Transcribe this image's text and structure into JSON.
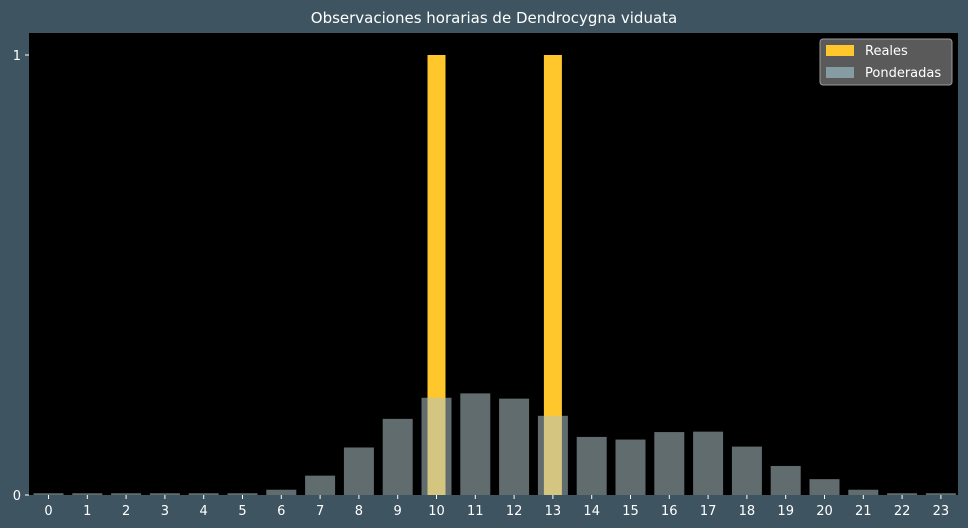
{
  "chart_data": {
    "type": "bar",
    "title": "Observaciones horarias de Dendrocygna viduata",
    "xlabel": "",
    "ylabel": "",
    "categories": [
      "0",
      "1",
      "2",
      "3",
      "4",
      "5",
      "6",
      "7",
      "8",
      "9",
      "10",
      "11",
      "12",
      "13",
      "14",
      "15",
      "16",
      "17",
      "18",
      "19",
      "20",
      "21",
      "22",
      "23"
    ],
    "ylim": [
      0,
      1.05
    ],
    "yticks": [
      "0",
      "1"
    ],
    "grid": false,
    "legend_position": "top-right",
    "series": [
      {
        "name": "Reales",
        "color": "#ffc72c",
        "values": [
          0,
          0,
          0,
          0,
          0,
          0,
          0,
          0,
          0,
          0,
          1,
          0,
          0,
          1,
          0,
          0,
          0,
          0,
          0,
          0,
          0,
          0,
          0,
          0
        ]
      },
      {
        "name": "Ponderadas",
        "color": "#b0c4c8",
        "opacity": 0.55,
        "values": [
          0.004,
          0.004,
          0.004,
          0.004,
          0.004,
          0.004,
          0.012,
          0.044,
          0.108,
          0.173,
          0.221,
          0.231,
          0.219,
          0.18,
          0.132,
          0.126,
          0.143,
          0.144,
          0.11,
          0.066,
          0.036,
          0.012,
          0.004,
          0.004
        ]
      }
    ]
  }
}
